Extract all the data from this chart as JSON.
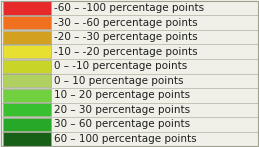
{
  "entries": [
    {
      "color": "#E8292A",
      "label": "-60 – -100 percentage points"
    },
    {
      "color": "#F07020",
      "label": "-30 – -60 percentage points"
    },
    {
      "color": "#D4A020",
      "label": "-20 – -30 percentage points"
    },
    {
      "color": "#E8E030",
      "label": "-10 – -20 percentage points"
    },
    {
      "color": "#C8D428",
      "label": "0 – -10 percentage points"
    },
    {
      "color": "#B0D060",
      "label": "0 – 10 percentage points"
    },
    {
      "color": "#70D040",
      "label": "10 – 20 percentage points"
    },
    {
      "color": "#38C030",
      "label": "20 – 30 percentage points"
    },
    {
      "color": "#28A828",
      "label": "30 – 60 percentage points"
    },
    {
      "color": "#186018",
      "label": "60 – 100 percentage points"
    }
  ],
  "background_color": "#f0f0e8",
  "border_color": "#a0a090",
  "text_color": "#202020",
  "font_size": 7.5
}
